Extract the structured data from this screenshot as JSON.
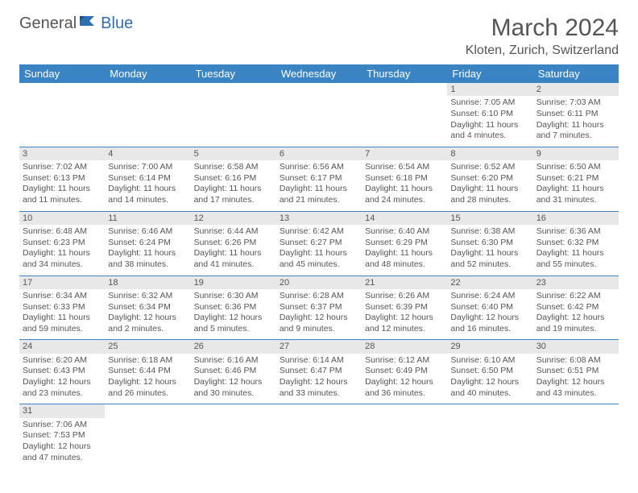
{
  "logo": {
    "part1": "General",
    "part2": "Blue"
  },
  "title": "March 2024",
  "location": "Kloten, Zurich, Switzerland",
  "colors": {
    "header_bg": "#3b84c4",
    "header_text": "#ffffff",
    "daynum_bg": "#e8e8e8",
    "border": "#3b84c4",
    "text": "#555555",
    "logo_blue": "#2d6fb5"
  },
  "weekdays": [
    "Sunday",
    "Monday",
    "Tuesday",
    "Wednesday",
    "Thursday",
    "Friday",
    "Saturday"
  ],
  "weeks": [
    [
      null,
      null,
      null,
      null,
      null,
      {
        "n": "1",
        "sr": "Sunrise: 7:05 AM",
        "ss": "Sunset: 6:10 PM",
        "d1": "Daylight: 11 hours",
        "d2": "and 4 minutes."
      },
      {
        "n": "2",
        "sr": "Sunrise: 7:03 AM",
        "ss": "Sunset: 6:11 PM",
        "d1": "Daylight: 11 hours",
        "d2": "and 7 minutes."
      }
    ],
    [
      {
        "n": "3",
        "sr": "Sunrise: 7:02 AM",
        "ss": "Sunset: 6:13 PM",
        "d1": "Daylight: 11 hours",
        "d2": "and 11 minutes."
      },
      {
        "n": "4",
        "sr": "Sunrise: 7:00 AM",
        "ss": "Sunset: 6:14 PM",
        "d1": "Daylight: 11 hours",
        "d2": "and 14 minutes."
      },
      {
        "n": "5",
        "sr": "Sunrise: 6:58 AM",
        "ss": "Sunset: 6:16 PM",
        "d1": "Daylight: 11 hours",
        "d2": "and 17 minutes."
      },
      {
        "n": "6",
        "sr": "Sunrise: 6:56 AM",
        "ss": "Sunset: 6:17 PM",
        "d1": "Daylight: 11 hours",
        "d2": "and 21 minutes."
      },
      {
        "n": "7",
        "sr": "Sunrise: 6:54 AM",
        "ss": "Sunset: 6:18 PM",
        "d1": "Daylight: 11 hours",
        "d2": "and 24 minutes."
      },
      {
        "n": "8",
        "sr": "Sunrise: 6:52 AM",
        "ss": "Sunset: 6:20 PM",
        "d1": "Daylight: 11 hours",
        "d2": "and 28 minutes."
      },
      {
        "n": "9",
        "sr": "Sunrise: 6:50 AM",
        "ss": "Sunset: 6:21 PM",
        "d1": "Daylight: 11 hours",
        "d2": "and 31 minutes."
      }
    ],
    [
      {
        "n": "10",
        "sr": "Sunrise: 6:48 AM",
        "ss": "Sunset: 6:23 PM",
        "d1": "Daylight: 11 hours",
        "d2": "and 34 minutes."
      },
      {
        "n": "11",
        "sr": "Sunrise: 6:46 AM",
        "ss": "Sunset: 6:24 PM",
        "d1": "Daylight: 11 hours",
        "d2": "and 38 minutes."
      },
      {
        "n": "12",
        "sr": "Sunrise: 6:44 AM",
        "ss": "Sunset: 6:26 PM",
        "d1": "Daylight: 11 hours",
        "d2": "and 41 minutes."
      },
      {
        "n": "13",
        "sr": "Sunrise: 6:42 AM",
        "ss": "Sunset: 6:27 PM",
        "d1": "Daylight: 11 hours",
        "d2": "and 45 minutes."
      },
      {
        "n": "14",
        "sr": "Sunrise: 6:40 AM",
        "ss": "Sunset: 6:29 PM",
        "d1": "Daylight: 11 hours",
        "d2": "and 48 minutes."
      },
      {
        "n": "15",
        "sr": "Sunrise: 6:38 AM",
        "ss": "Sunset: 6:30 PM",
        "d1": "Daylight: 11 hours",
        "d2": "and 52 minutes."
      },
      {
        "n": "16",
        "sr": "Sunrise: 6:36 AM",
        "ss": "Sunset: 6:32 PM",
        "d1": "Daylight: 11 hours",
        "d2": "and 55 minutes."
      }
    ],
    [
      {
        "n": "17",
        "sr": "Sunrise: 6:34 AM",
        "ss": "Sunset: 6:33 PM",
        "d1": "Daylight: 11 hours",
        "d2": "and 59 minutes."
      },
      {
        "n": "18",
        "sr": "Sunrise: 6:32 AM",
        "ss": "Sunset: 6:34 PM",
        "d1": "Daylight: 12 hours",
        "d2": "and 2 minutes."
      },
      {
        "n": "19",
        "sr": "Sunrise: 6:30 AM",
        "ss": "Sunset: 6:36 PM",
        "d1": "Daylight: 12 hours",
        "d2": "and 5 minutes."
      },
      {
        "n": "20",
        "sr": "Sunrise: 6:28 AM",
        "ss": "Sunset: 6:37 PM",
        "d1": "Daylight: 12 hours",
        "d2": "and 9 minutes."
      },
      {
        "n": "21",
        "sr": "Sunrise: 6:26 AM",
        "ss": "Sunset: 6:39 PM",
        "d1": "Daylight: 12 hours",
        "d2": "and 12 minutes."
      },
      {
        "n": "22",
        "sr": "Sunrise: 6:24 AM",
        "ss": "Sunset: 6:40 PM",
        "d1": "Daylight: 12 hours",
        "d2": "and 16 minutes."
      },
      {
        "n": "23",
        "sr": "Sunrise: 6:22 AM",
        "ss": "Sunset: 6:42 PM",
        "d1": "Daylight: 12 hours",
        "d2": "and 19 minutes."
      }
    ],
    [
      {
        "n": "24",
        "sr": "Sunrise: 6:20 AM",
        "ss": "Sunset: 6:43 PM",
        "d1": "Daylight: 12 hours",
        "d2": "and 23 minutes."
      },
      {
        "n": "25",
        "sr": "Sunrise: 6:18 AM",
        "ss": "Sunset: 6:44 PM",
        "d1": "Daylight: 12 hours",
        "d2": "and 26 minutes."
      },
      {
        "n": "26",
        "sr": "Sunrise: 6:16 AM",
        "ss": "Sunset: 6:46 PM",
        "d1": "Daylight: 12 hours",
        "d2": "and 30 minutes."
      },
      {
        "n": "27",
        "sr": "Sunrise: 6:14 AM",
        "ss": "Sunset: 6:47 PM",
        "d1": "Daylight: 12 hours",
        "d2": "and 33 minutes."
      },
      {
        "n": "28",
        "sr": "Sunrise: 6:12 AM",
        "ss": "Sunset: 6:49 PM",
        "d1": "Daylight: 12 hours",
        "d2": "and 36 minutes."
      },
      {
        "n": "29",
        "sr": "Sunrise: 6:10 AM",
        "ss": "Sunset: 6:50 PM",
        "d1": "Daylight: 12 hours",
        "d2": "and 40 minutes."
      },
      {
        "n": "30",
        "sr": "Sunrise: 6:08 AM",
        "ss": "Sunset: 6:51 PM",
        "d1": "Daylight: 12 hours",
        "d2": "and 43 minutes."
      }
    ],
    [
      {
        "n": "31",
        "sr": "Sunrise: 7:06 AM",
        "ss": "Sunset: 7:53 PM",
        "d1": "Daylight: 12 hours",
        "d2": "and 47 minutes."
      },
      null,
      null,
      null,
      null,
      null,
      null
    ]
  ]
}
